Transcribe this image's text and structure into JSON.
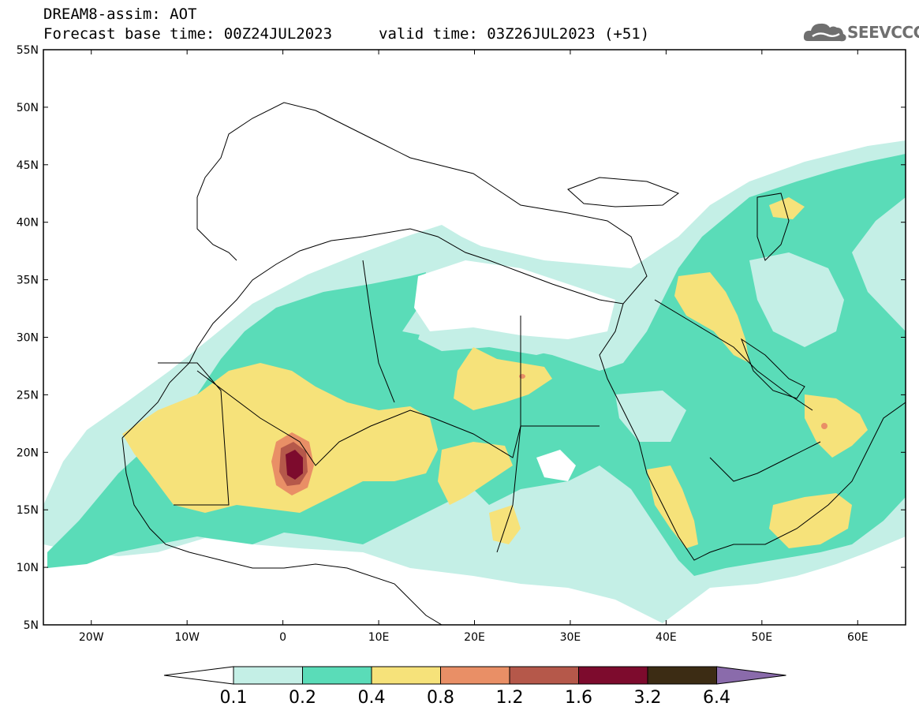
{
  "header": {
    "title": "DREAM8-assim: AOT",
    "base_time": "Forecast base time: 00Z24JUL2023",
    "valid_time": "valid time: 03Z26JUL2023 (+51)"
  },
  "logo": {
    "text": "SEEVCCC",
    "icon": "cloud-icon"
  },
  "map": {
    "lon_range": [
      -25,
      65
    ],
    "lat_range": [
      5,
      55
    ],
    "lat_labels": [
      "55N",
      "50N",
      "45N",
      "40N",
      "35N",
      "30N",
      "25N",
      "20N",
      "15N",
      "10N",
      "5N"
    ],
    "lon_labels": [
      "20W",
      "10W",
      "0",
      "10E",
      "20E",
      "30E",
      "40E",
      "50E",
      "60E"
    ]
  },
  "colorbar": {
    "labels": [
      "0.1",
      "0.2",
      "0.4",
      "0.8",
      "1.2",
      "1.6",
      "3.2",
      "6.4"
    ],
    "colors": [
      "#ffffff",
      "#c4efe6",
      "#5adcb8",
      "#f6e27a",
      "#e98f66",
      "#b5584a",
      "#7d0b2d",
      "#3c2c14",
      "#8a6bab"
    ]
  },
  "legend_colors": {
    "lowest": "#c4efe6",
    "low": "#5adcb8",
    "mid": "#f6e27a",
    "high": "#e98f66",
    "higher": "#b5584a",
    "peak": "#7d0b2d"
  }
}
